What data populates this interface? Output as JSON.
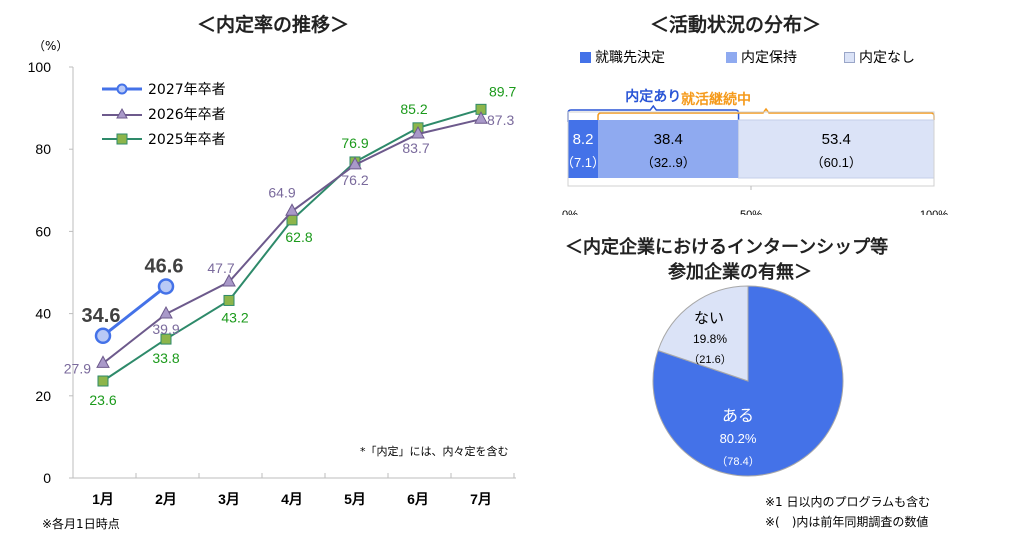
{
  "chart_data": [
    {
      "type": "line",
      "title": "＜内定率の推移＞",
      "ylabel": "（%）",
      "xlabel": "",
      "ylim": [
        0,
        100
      ],
      "yticks": [
        0,
        20,
        40,
        60,
        80,
        100
      ],
      "categories": [
        "1月",
        "2月",
        "3月",
        "4月",
        "5月",
        "6月",
        "7月"
      ],
      "legend_position": "top-left",
      "series": [
        {
          "name": "2027年卒者",
          "color": "#4472e8",
          "marker": "circle",
          "values": [
            34.6,
            46.6,
            null,
            null,
            null,
            null,
            null
          ]
        },
        {
          "name": "2026年卒者",
          "color": "#6d5a8c",
          "marker": "triangle",
          "values": [
            27.9,
            39.9,
            47.7,
            64.9,
            76.2,
            83.7,
            87.3
          ]
        },
        {
          "name": "2025年卒者",
          "color": "#2e8a6a",
          "marker": "square",
          "values": [
            23.6,
            33.8,
            43.2,
            62.8,
            76.9,
            85.2,
            89.7
          ]
        }
      ],
      "annotation": "*「内定」には、内々定を含む",
      "footnote": "※各月1日時点"
    },
    {
      "type": "bar",
      "orientation": "horizontal-stacked",
      "title": "＜活動状況の分布＞",
      "xlim": [
        0,
        100
      ],
      "xticks": [
        "0%",
        "50%",
        "100%"
      ],
      "legend_position": "top",
      "segments": [
        {
          "name": "就職先決定",
          "value": 8.2,
          "prev_label": "（7.1）",
          "color": "#4472e8"
        },
        {
          "name": "内定保持",
          "value": 38.4,
          "prev_label": "（32..9）",
          "color": "#8faaf0"
        },
        {
          "name": "内定なし",
          "value": 53.4,
          "prev_label": "（60.1）",
          "color": "#dbe3f7"
        }
      ],
      "brackets": [
        {
          "label": "内定あり",
          "color": "#2a55d6",
          "from": 0,
          "to": 46.6
        },
        {
          "label": "就活継続中",
          "color": "#f59a1b",
          "from": 8.2,
          "to": 100
        }
      ]
    },
    {
      "type": "pie",
      "title_line1": "＜内定企業におけるインターンシップ等",
      "title_line2": "参加企業の有無＞",
      "slices": [
        {
          "name": "ある",
          "value": 80.2,
          "value_label": "80.2%",
          "prev_label": "（78.4）",
          "color": "#4472e8"
        },
        {
          "name": "ない",
          "value": 19.8,
          "value_label": "19.8%",
          "prev_label": "（21.6）",
          "color": "#dbe3f7"
        }
      ],
      "notes": [
        "※1 日以内のプログラムも含む",
        "※(　)内は前年同期調査の数値"
      ]
    }
  ]
}
